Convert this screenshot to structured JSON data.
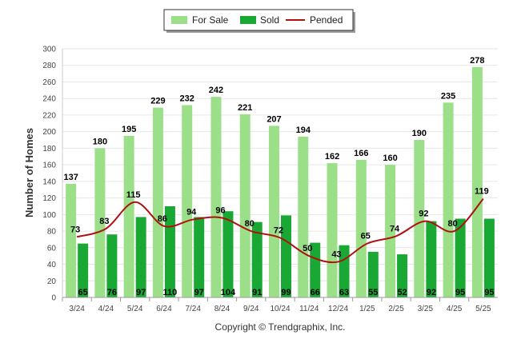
{
  "chart_data": {
    "type": "bar",
    "categories": [
      "3/24",
      "4/24",
      "5/24",
      "6/24",
      "7/24",
      "8/24",
      "9/24",
      "10/24",
      "11/24",
      "12/24",
      "1/25",
      "2/25",
      "3/25",
      "4/25",
      "5/25"
    ],
    "series": [
      {
        "name": "For Sale",
        "type": "bar",
        "color": "#9be088",
        "values": [
          137,
          180,
          195,
          229,
          232,
          242,
          221,
          207,
          194,
          162,
          166,
          160,
          190,
          235,
          278
        ]
      },
      {
        "name": "Sold",
        "type": "bar",
        "color": "#1aa834",
        "values": [
          65,
          76,
          97,
          110,
          97,
          104,
          91,
          99,
          66,
          63,
          55,
          52,
          92,
          95,
          95
        ]
      },
      {
        "name": "Pended",
        "type": "line",
        "color": "#b01010",
        "values": [
          73,
          83,
          115,
          86,
          94,
          96,
          80,
          72,
          50,
          43,
          65,
          74,
          92,
          80,
          119
        ]
      }
    ],
    "title": "",
    "xlabel": "",
    "ylabel": "Number of Homes",
    "ylim": [
      0,
      300
    ],
    "yticks": [
      0,
      20,
      40,
      60,
      80,
      100,
      120,
      140,
      160,
      180,
      200,
      220,
      240,
      260,
      280,
      300
    ],
    "grid": true,
    "legend_position": "top-center"
  },
  "footer": {
    "copyright": "Copyright © Trendgraphix, Inc."
  }
}
